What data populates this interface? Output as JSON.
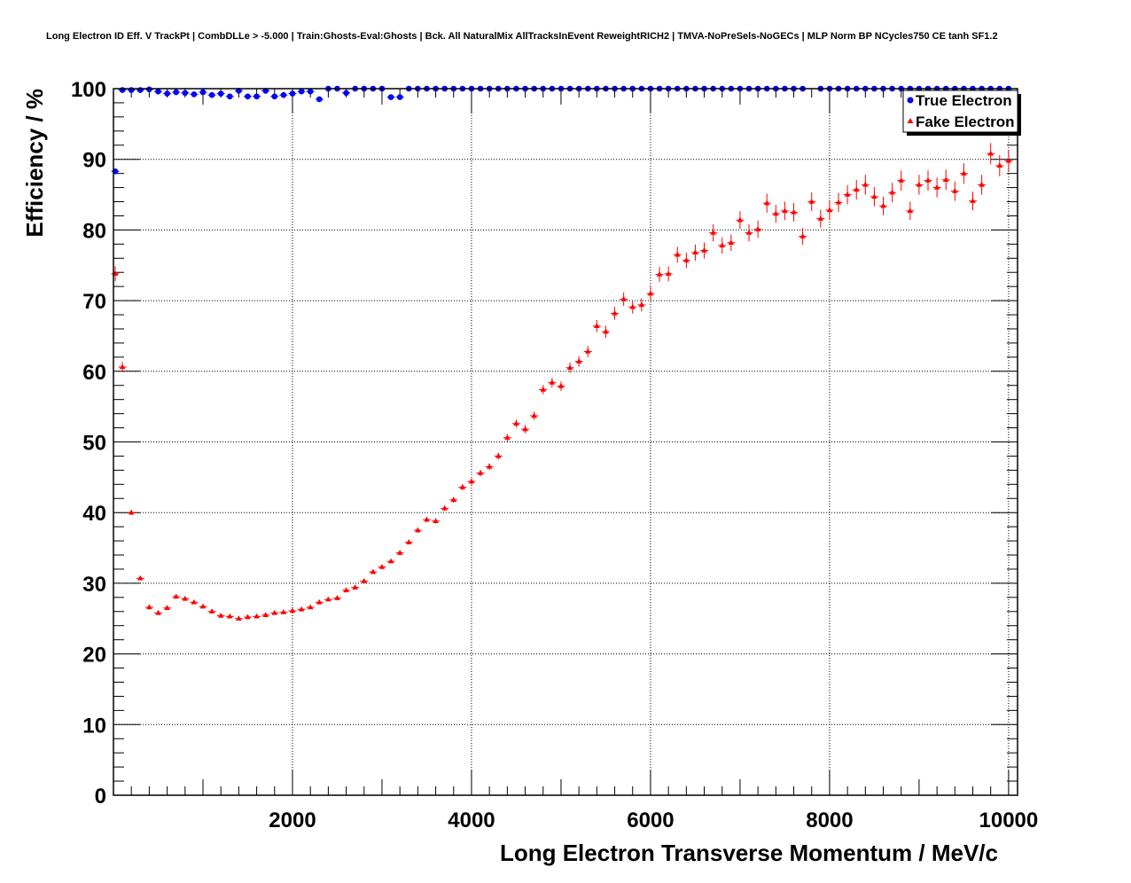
{
  "chart_data": {
    "type": "scatter",
    "title": "Long Electron ID Eff. V TrackPt | CombDLLe > -5.000 | Train:Ghosts-Eval:Ghosts | Bck. All NaturalMix AllTracksInEvent ReweightRICH2 | TMVA-NoPreSels-NoGECs | MLP Norm BP NCycles750 CE tanh SF1.2",
    "xlabel": "Long Electron Transverse Momentum / MeV/c",
    "ylabel": "Efficiency / %",
    "xlim": [
      0,
      10100
    ],
    "ylim": [
      0,
      100
    ],
    "x_ticks": [
      "2000",
      "4000",
      "6000",
      "8000",
      "10000"
    ],
    "y_ticks": [
      "0",
      "10",
      "20",
      "30",
      "40",
      "50",
      "60",
      "70",
      "80",
      "90",
      "100"
    ],
    "grid": true,
    "legend_position": "top-right",
    "series": [
      {
        "name": "True Electron",
        "color": "#0000ff",
        "marker": "circle",
        "x": [
          20,
          100,
          200,
          300,
          400,
          500,
          600,
          700,
          800,
          900,
          1000,
          1100,
          1200,
          1300,
          1400,
          1500,
          1600,
          1700,
          1800,
          1900,
          2000,
          2100,
          2200,
          2300,
          2400,
          2500,
          2600,
          2700,
          2800,
          2900,
          3000,
          3100,
          3200,
          3300,
          3400,
          3500,
          3600,
          3700,
          3800,
          3900,
          4000,
          4100,
          4200,
          4300,
          4400,
          4500,
          4600,
          4700,
          4800,
          4900,
          5000,
          5100,
          5200,
          5300,
          5400,
          5500,
          5600,
          5700,
          5800,
          5900,
          6000,
          6100,
          6200,
          6300,
          6400,
          6500,
          6600,
          6700,
          6800,
          6900,
          7000,
          7100,
          7200,
          7300,
          7400,
          7500,
          7600,
          7700,
          7900,
          8000,
          8100,
          8200,
          8300,
          8400,
          8500,
          8600,
          8700,
          8800,
          8900,
          9000,
          9100,
          9200,
          9300,
          9400,
          9500,
          9600,
          9700,
          9800,
          9900,
          10000
        ],
        "y": [
          88.3,
          99.8,
          99.8,
          99.8,
          99.9,
          99.6,
          99.3,
          99.5,
          99.4,
          99.2,
          99.5,
          99.1,
          99.3,
          98.9,
          99.7,
          98.9,
          98.9,
          99.7,
          98.9,
          99.1,
          99.3,
          99.6,
          99.6,
          98.5,
          100,
          100,
          99.4,
          100,
          100,
          100,
          100,
          98.8,
          98.8,
          100,
          100,
          100,
          100,
          100,
          100,
          100,
          100,
          100,
          100,
          100,
          100,
          100,
          100,
          100,
          100,
          100,
          100,
          100,
          100,
          100,
          100,
          100,
          100,
          100,
          100,
          100,
          100,
          100,
          100,
          100,
          100,
          100,
          100,
          100,
          100,
          100,
          100,
          100,
          100,
          100,
          100,
          100,
          100,
          100,
          100,
          100,
          100,
          100,
          100,
          100,
          100,
          100,
          100,
          100,
          100,
          100,
          100,
          100,
          100,
          100,
          100,
          100,
          100,
          100,
          100,
          100
        ]
      },
      {
        "name": "Fake Electron",
        "color": "#ff0000",
        "marker": "triangle",
        "x": [
          20,
          100,
          200,
          300,
          400,
          500,
          600,
          700,
          800,
          900,
          1000,
          1100,
          1200,
          1300,
          1400,
          1500,
          1600,
          1700,
          1800,
          1900,
          2000,
          2100,
          2200,
          2300,
          2400,
          2500,
          2600,
          2700,
          2800,
          2900,
          3000,
          3100,
          3200,
          3300,
          3400,
          3500,
          3600,
          3700,
          3800,
          3900,
          4000,
          4100,
          4200,
          4300,
          4400,
          4500,
          4600,
          4700,
          4800,
          4900,
          5000,
          5100,
          5200,
          5300,
          5400,
          5500,
          5600,
          5700,
          5800,
          5900,
          6000,
          6100,
          6200,
          6300,
          6400,
          6500,
          6600,
          6700,
          6800,
          6900,
          7000,
          7100,
          7200,
          7300,
          7400,
          7500,
          7600,
          7700,
          7800,
          7900,
          8000,
          8100,
          8200,
          8300,
          8400,
          8500,
          8600,
          8700,
          8800,
          8900,
          9000,
          9100,
          9200,
          9300,
          9400,
          9500,
          9600,
          9700,
          9800,
          9900,
          10000
        ],
        "y": [
          73.8,
          60.6,
          40.0,
          30.7,
          26.6,
          25.8,
          26.5,
          28.1,
          27.8,
          27.3,
          26.7,
          26.0,
          25.4,
          25.3,
          25.0,
          25.2,
          25.3,
          25.5,
          25.8,
          25.9,
          26.1,
          26.3,
          26.6,
          27.3,
          27.7,
          27.9,
          29.0,
          29.4,
          30.3,
          31.6,
          32.3,
          33.1,
          34.3,
          35.8,
          37.5,
          39.0,
          38.8,
          40.6,
          41.8,
          43.6,
          44.4,
          45.6,
          46.5,
          48.0,
          50.6,
          52.6,
          51.8,
          53.7,
          57.4,
          58.4,
          57.9,
          60.5,
          61.4,
          62.8,
          66.4,
          65.6,
          68.2,
          70.2,
          69.1,
          69.4,
          71.0,
          73.7,
          73.8,
          76.5,
          75.7,
          76.8,
          77.1,
          79.6,
          77.8,
          78.2,
          81.4,
          79.6,
          80.1,
          83.8,
          82.3,
          82.7,
          82.5,
          79.1,
          84.0,
          81.6,
          82.8,
          83.9,
          85.0,
          85.7,
          86.4,
          84.7,
          83.4,
          85.3,
          87.0,
          82.7,
          86.4,
          87.0,
          86.0,
          87.1,
          85.5,
          88.0,
          84.1,
          86.4,
          90.8,
          89.1,
          89.8
        ]
      }
    ]
  }
}
